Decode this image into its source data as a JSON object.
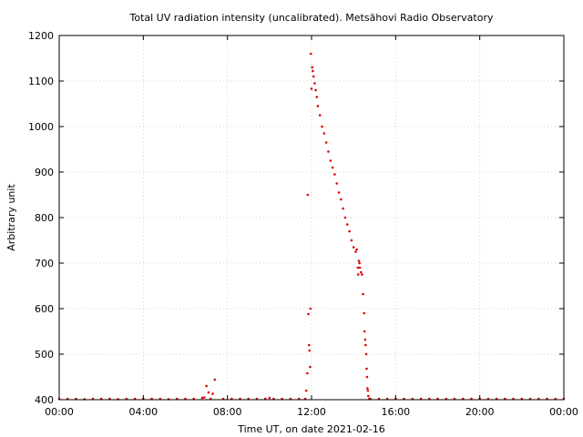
{
  "chart_data": {
    "type": "scatter",
    "title": "Total UV radiation intensity (uncalibrated). Metsähovi Radio Observatory",
    "xlabel": "Time UT, on date 2021-02-16",
    "ylabel": "Arbitrary unit",
    "xlim": [
      0,
      24
    ],
    "ylim": [
      400,
      1200
    ],
    "x_ticks": [
      {
        "value": 0,
        "label": "00:00"
      },
      {
        "value": 4,
        "label": "04:00"
      },
      {
        "value": 8,
        "label": "08:00"
      },
      {
        "value": 12,
        "label": "12:00"
      },
      {
        "value": 16,
        "label": "16:00"
      },
      {
        "value": 20,
        "label": "20:00"
      },
      {
        "value": 24,
        "label": "00:00"
      }
    ],
    "y_ticks": [
      {
        "value": 400,
        "label": "400"
      },
      {
        "value": 500,
        "label": "500"
      },
      {
        "value": 600,
        "label": "600"
      },
      {
        "value": 700,
        "label": "700"
      },
      {
        "value": 800,
        "label": "800"
      },
      {
        "value": 900,
        "label": "900"
      },
      {
        "value": 1000,
        "label": "1000"
      },
      {
        "value": 1100,
        "label": "1100"
      },
      {
        "value": 1200,
        "label": "1200"
      }
    ],
    "grid": true,
    "marker_color": "#dd0000",
    "series": [
      {
        "x": [
          0.0,
          0.4,
          0.8,
          1.2,
          1.6,
          2.0,
          2.4,
          2.8,
          3.2,
          3.6,
          4.0,
          4.4,
          4.8,
          5.2,
          5.6,
          6.0,
          6.4,
          6.8,
          6.9,
          7.0,
          7.1,
          7.2,
          7.3,
          7.4,
          7.8,
          8.2,
          8.6,
          9.0,
          9.4,
          9.8,
          10.0,
          10.2,
          10.6,
          11.0,
          11.4,
          11.7,
          11.75,
          11.8,
          11.82,
          11.85,
          11.88,
          11.9,
          11.93,
          11.95,
          11.97,
          12.0,
          12.03,
          12.06,
          12.1,
          12.15,
          12.2,
          12.25,
          12.3,
          12.4,
          12.5,
          12.6,
          12.7,
          12.8,
          12.9,
          13.0,
          13.1,
          13.2,
          13.3,
          13.4,
          13.5,
          13.6,
          13.7,
          13.8,
          13.9,
          14.0,
          14.1,
          14.15,
          14.2,
          14.22,
          14.25,
          14.28,
          14.3,
          14.35,
          14.4,
          14.45,
          14.5,
          14.52,
          14.55,
          14.57,
          14.6,
          14.62,
          14.64,
          14.66,
          14.68,
          14.7,
          14.75,
          14.8,
          15.2,
          15.6,
          16.0,
          16.4,
          16.8,
          17.2,
          17.6,
          18.0,
          18.4,
          18.8,
          19.2,
          19.6,
          20.0,
          20.4,
          20.8,
          21.2,
          21.6,
          22.0,
          22.4,
          22.8,
          23.2,
          23.6,
          24.0
        ],
        "y": [
          402,
          402,
          402,
          401,
          402,
          402,
          402,
          401,
          402,
          402,
          402,
          402,
          402,
          401,
          402,
          402,
          402,
          404,
          405,
          430,
          416,
          402,
          413,
          444,
          402,
          402,
          402,
          402,
          402,
          402,
          404,
          402,
          402,
          402,
          402,
          402,
          420,
          458,
          850,
          588,
          520,
          508,
          472,
          600,
          1160,
          1083,
          1130,
          1122,
          1110,
          1095,
          1080,
          1065,
          1045,
          1025,
          1000,
          985,
          965,
          945,
          925,
          910,
          895,
          875,
          855,
          840,
          820,
          800,
          785,
          770,
          750,
          735,
          725,
          730,
          690,
          675,
          705,
          700,
          690,
          680,
          675,
          632,
          590,
          550,
          532,
          520,
          500,
          468,
          450,
          425,
          420,
          408,
          402,
          402,
          402,
          402,
          402,
          402,
          402,
          402,
          402,
          402,
          402,
          402,
          402,
          402,
          402,
          402,
          402,
          402,
          402,
          402,
          402,
          402,
          402,
          402,
          402
        ]
      }
    ]
  }
}
